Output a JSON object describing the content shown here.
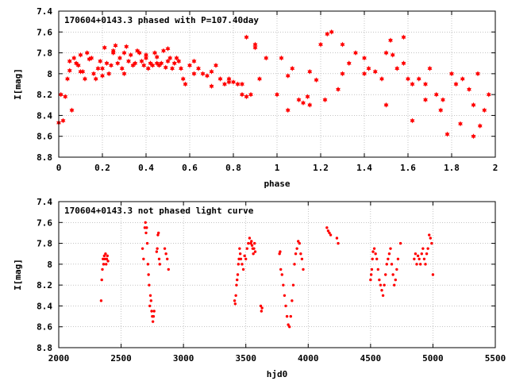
{
  "chart_data": [
    {
      "type": "scatter",
      "title": "170604+0143.3 phased with P=107.40day",
      "xlabel": "phase",
      "ylabel": "I[mag]",
      "xlim": [
        0,
        2
      ],
      "ylim": [
        8.8,
        7.4
      ],
      "y_inverted": true,
      "grid": true,
      "color": "#ff0000",
      "marker": "star",
      "x_ticks": [
        "0",
        "0.2",
        "0.4",
        "0.6",
        "0.8",
        "1",
        "1.2",
        "1.4",
        "1.6",
        "1.8",
        "2"
      ],
      "y_ticks": [
        "7.4",
        "7.6",
        "7.8",
        "8",
        "8.2",
        "8.4",
        "8.6",
        "8.8"
      ],
      "series": [
        {
          "x": [
            0.0,
            0.01,
            0.02,
            0.03,
            0.04,
            0.05,
            0.06,
            0.07,
            0.08,
            0.09,
            0.1,
            0.11,
            0.12,
            0.13,
            0.14,
            0.15,
            0.16,
            0.17,
            0.18,
            0.19,
            0.2,
            0.21,
            0.22,
            0.23,
            0.24,
            0.25,
            0.26,
            0.27,
            0.28,
            0.29,
            0.3,
            0.31,
            0.32,
            0.33,
            0.34,
            0.35,
            0.36,
            0.37,
            0.38,
            0.39,
            0.4,
            0.41,
            0.42,
            0.43,
            0.44,
            0.45,
            0.46,
            0.47,
            0.48,
            0.49,
            0.5,
            0.51,
            0.52,
            0.53,
            0.54,
            0.55,
            0.56,
            0.57,
            0.58,
            0.6,
            0.62,
            0.64,
            0.66,
            0.68,
            0.7,
            0.72,
            0.74,
            0.76,
            0.78,
            0.8,
            0.82,
            0.84,
            0.86,
            0.88,
            0.9,
            0.92,
            0.95,
            1.0,
            1.02,
            1.05,
            1.07,
            1.1,
            1.12,
            1.15,
            1.18,
            1.2,
            1.22,
            1.25,
            1.28,
            1.3,
            1.33,
            1.36,
            1.4,
            1.42,
            1.45,
            1.48,
            1.5,
            1.52,
            1.55,
            1.58,
            1.6,
            1.62,
            1.65,
            1.68,
            1.7,
            1.73,
            1.76,
            1.8,
            1.82,
            1.85,
            1.88,
            1.9,
            1.92,
            1.95,
            1.97,
            0.05,
            0.1,
            0.2,
            0.3,
            0.4,
            0.5,
            0.62,
            0.78,
            0.86,
            0.9,
            1.05,
            1.14,
            1.23,
            1.4,
            1.5,
            1.58,
            1.68,
            1.75,
            1.84,
            1.93,
            0.25,
            0.45,
            0.7,
            0.84,
            1.15,
            1.3,
            1.53,
            1.62,
            1.78,
            1.9
          ],
          "y": [
            8.47,
            8.2,
            8.45,
            8.22,
            8.05,
            7.97,
            8.35,
            7.85,
            7.9,
            7.92,
            7.82,
            7.98,
            8.05,
            7.8,
            7.86,
            7.85,
            8.0,
            8.05,
            7.95,
            7.88,
            8.02,
            7.75,
            7.9,
            8.0,
            7.92,
            7.8,
            7.73,
            7.9,
            7.85,
            7.95,
            7.8,
            7.74,
            7.88,
            7.82,
            7.92,
            7.9,
            7.78,
            7.8,
            7.88,
            7.92,
            7.85,
            7.95,
            7.9,
            7.92,
            7.8,
            7.84,
            7.92,
            7.9,
            7.78,
            7.94,
            7.76,
            7.85,
            7.95,
            7.9,
            7.85,
            7.88,
            7.95,
            8.05,
            8.1,
            7.92,
            7.88,
            7.95,
            8.0,
            8.02,
            7.98,
            7.92,
            8.05,
            8.1,
            8.05,
            8.08,
            8.1,
            8.2,
            7.65,
            8.2,
            7.72,
            8.05,
            7.85,
            8.2,
            7.85,
            8.02,
            7.95,
            8.25,
            8.28,
            7.98,
            8.06,
            7.72,
            8.25,
            7.6,
            8.15,
            8.0,
            7.9,
            7.8,
            8.0,
            7.95,
            7.98,
            8.05,
            7.8,
            7.68,
            7.95,
            7.9,
            8.05,
            8.1,
            8.05,
            8.25,
            7.95,
            8.2,
            8.25,
            8.0,
            8.1,
            8.05,
            8.15,
            8.3,
            8.0,
            8.35,
            8.2,
            7.88,
            7.98,
            7.95,
            8.0,
            7.82,
            7.88,
            8.0,
            8.08,
            8.22,
            7.75,
            8.35,
            8.22,
            7.62,
            7.85,
            8.3,
            7.65,
            8.1,
            8.35,
            8.48,
            8.5,
            7.78,
            7.9,
            8.12,
            8.1,
            8.3,
            7.72,
            7.82,
            8.45,
            8.58,
            8.6
          ]
        }
      ]
    },
    {
      "type": "scatter",
      "title": "170604+0143.3 not phased light curve",
      "xlabel": "hjd0",
      "ylabel": "I[mag]",
      "xlim": [
        2000,
        5500
      ],
      "ylim": [
        8.8,
        7.4
      ],
      "y_inverted": true,
      "grid": true,
      "color": "#ff0000",
      "marker": "dot",
      "x_ticks": [
        "2000",
        "2500",
        "3000",
        "3500",
        "4000",
        "4500",
        "5000",
        "5500"
      ],
      "y_ticks": [
        "7.4",
        "7.6",
        "7.8",
        "8",
        "8.2",
        "8.4",
        "8.6",
        "8.8"
      ],
      "series": [
        {
          "x": [
            2340,
            2345,
            2350,
            2355,
            2360,
            2365,
            2370,
            2375,
            2380,
            2385,
            2390,
            2395,
            2672,
            2680,
            2690,
            2695,
            2700,
            2705,
            2710,
            2715,
            2720,
            2725,
            2730,
            2735,
            2740,
            2745,
            2750,
            2755,
            2760,
            2765,
            2785,
            2790,
            2795,
            2800,
            2805,
            2810,
            2850,
            2860,
            2870,
            2880,
            3410,
            3415,
            3420,
            3425,
            3430,
            3435,
            3440,
            3445,
            3450,
            3455,
            3460,
            3470,
            3480,
            3490,
            3500,
            3510,
            3520,
            3530,
            3540,
            3545,
            3550,
            3555,
            3560,
            3565,
            3570,
            3575,
            3620,
            3625,
            3630,
            3770,
            3775,
            3780,
            3790,
            3800,
            3810,
            3820,
            3830,
            3840,
            3850,
            3860,
            3870,
            3880,
            3890,
            3900,
            3910,
            3920,
            3930,
            3940,
            3950,
            3960,
            4150,
            4160,
            4170,
            4180,
            4230,
            4240,
            4500,
            4505,
            4510,
            4515,
            4520,
            4530,
            4540,
            4550,
            4560,
            4570,
            4580,
            4590,
            4600,
            4610,
            4620,
            4630,
            4640,
            4650,
            4660,
            4670,
            4680,
            4690,
            4700,
            4710,
            4720,
            4740,
            4850,
            4860,
            4870,
            4880,
            4890,
            4900,
            4910,
            4920,
            4930,
            4940,
            4950,
            4960,
            4970,
            4980,
            4990,
            5000
          ],
          "y": [
            8.35,
            8.15,
            8.05,
            7.95,
            8.0,
            7.92,
            7.95,
            7.9,
            8.0,
            7.95,
            7.92,
            7.97,
            7.85,
            7.95,
            7.65,
            7.6,
            7.7,
            7.65,
            7.8,
            8.0,
            8.1,
            8.2,
            8.4,
            8.3,
            8.35,
            8.45,
            8.5,
            8.55,
            8.5,
            8.45,
            7.88,
            7.85,
            7.72,
            7.7,
            7.95,
            8.0,
            7.85,
            7.9,
            7.95,
            8.05,
            8.35,
            8.38,
            8.3,
            8.2,
            8.15,
            8.1,
            8.0,
            7.95,
            7.85,
            7.9,
            7.95,
            8.0,
            8.05,
            7.92,
            7.95,
            7.85,
            7.8,
            7.75,
            7.8,
            7.78,
            7.82,
            7.85,
            7.9,
            7.85,
            7.8,
            7.88,
            8.4,
            8.45,
            8.42,
            7.9,
            7.88,
            8.05,
            8.1,
            8.2,
            8.3,
            8.4,
            8.5,
            8.58,
            8.6,
            8.5,
            8.35,
            8.2,
            8.0,
            7.9,
            7.85,
            7.78,
            7.8,
            7.9,
            7.95,
            8.05,
            7.65,
            7.68,
            7.7,
            7.72,
            7.75,
            7.8,
            8.15,
            8.1,
            8.05,
            7.95,
            7.88,
            7.85,
            7.9,
            7.95,
            8.05,
            8.15,
            8.2,
            8.25,
            8.3,
            8.2,
            8.1,
            8.0,
            7.95,
            7.9,
            7.85,
            8.0,
            8.1,
            8.2,
            8.15,
            8.05,
            7.95,
            7.8,
            7.95,
            7.9,
            8.0,
            7.92,
            7.95,
            8.0,
            7.9,
            7.85,
            7.95,
            8.0,
            7.9,
            7.85,
            7.72,
            7.75,
            7.8,
            8.1
          ]
        }
      ]
    }
  ]
}
